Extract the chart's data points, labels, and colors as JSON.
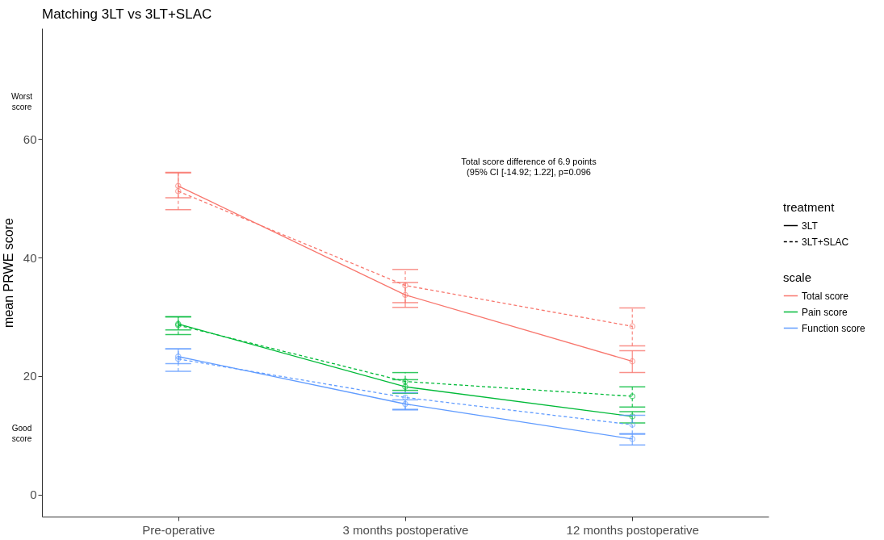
{
  "chart_data": {
    "type": "line",
    "title": "Matching 3LT vs 3LT+SLAC",
    "ylabel": "mean PRWE score",
    "categories": [
      "Pre-operative",
      "3 months postoperative",
      "12 months postoperative"
    ],
    "ylim": [
      -3.7,
      78.7
    ],
    "yticks": [
      0,
      20,
      40,
      60
    ],
    "grid": false,
    "legend": "right",
    "marker": "circle",
    "legend_title": "scale",
    "series": [
      {
        "name": "Total score",
        "line_style": "solid",
        "color": "#f8766d",
        "values": [
          52.1,
          33.7,
          22.5
        ],
        "errors": [
          [
            50.1,
            54.3
          ],
          [
            31.6,
            35.8
          ],
          [
            20.6,
            24.3
          ]
        ]
      },
      {
        "line_style": "dashed",
        "color": "#f8766d",
        "values": [
          51.2,
          35.3,
          28.4
        ],
        "errors": [
          [
            48.1,
            54.4
          ],
          [
            32.4,
            38.0
          ],
          [
            25.1,
            31.5
          ]
        ]
      },
      {
        "name": "Pain score",
        "line_style": "solid",
        "color": "#00ba38",
        "values": [
          28.8,
          18.2,
          13.2
        ],
        "errors": [
          [
            27.8,
            30.0
          ],
          [
            17.1,
            19.4
          ],
          [
            12.1,
            14.0
          ]
        ]
      },
      {
        "line_style": "dashed",
        "color": "#00ba38",
        "values": [
          28.6,
          19.1,
          16.6
        ],
        "errors": [
          [
            27.0,
            30.0
          ],
          [
            17.6,
            20.6
          ],
          [
            14.8,
            18.2
          ]
        ]
      },
      {
        "name": "Function score",
        "line_style": "solid",
        "color": "#619cff",
        "values": [
          23.3,
          15.3,
          9.4
        ],
        "errors": [
          [
            22.1,
            24.6
          ],
          [
            14.4,
            16.0
          ],
          [
            8.4,
            10.2
          ]
        ]
      },
      {
        "line_style": "dashed",
        "color": "#619cff",
        "values": [
          22.9,
          16.4,
          11.8
        ],
        "errors": [
          [
            20.8,
            24.6
          ],
          [
            14.3,
            17.2
          ],
          [
            10.3,
            13.4
          ]
        ]
      },
      {
        "name": "3LT",
        "line_style": "solid",
        "color": "#000000",
        "values": [
          null,
          null,
          null
        ]
      },
      {
        "name": "3LT+SLAC",
        "line_style": "dashed",
        "color": "#000000",
        "values": [
          null,
          null,
          null
        ]
      }
    ],
    "annotations": [
      "Worst score",
      "Good score",
      "Total score difference of 6.9 points\n(95% CI [-14.92; 1.22], p=0.096",
      "treatment"
    ]
  }
}
